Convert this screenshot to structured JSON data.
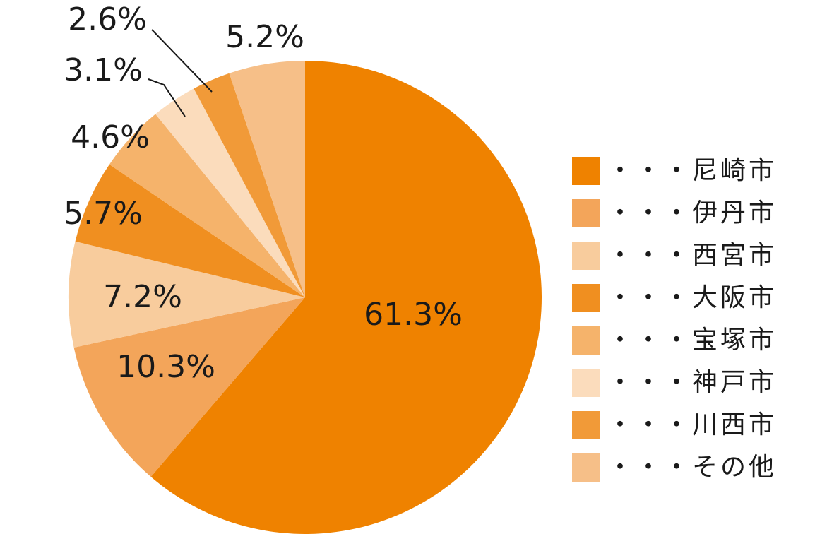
{
  "chart_data": {
    "type": "pie",
    "categories": [
      "・・・尼崎市",
      "・・・伊丹市",
      "・・・西宮市",
      "・・・大阪市",
      "・・・宝塚市",
      "・・・神戸市",
      "・・・川西市",
      "・・・その他"
    ],
    "values": [
      61.3,
      10.3,
      7.2,
      5.7,
      4.6,
      3.1,
      2.6,
      5.2
    ],
    "value_labels": [
      "61.3%",
      "10.3%",
      "7.2%",
      "5.7%",
      "4.6%",
      "3.1%",
      "2.6%",
      "5.2%"
    ],
    "colors": [
      "#ef8200",
      "#f3a55a",
      "#f8cc9d",
      "#f08f20",
      "#f5b36b",
      "#fbdcbc",
      "#f19a38",
      "#f6bf88"
    ],
    "legend": "right"
  }
}
